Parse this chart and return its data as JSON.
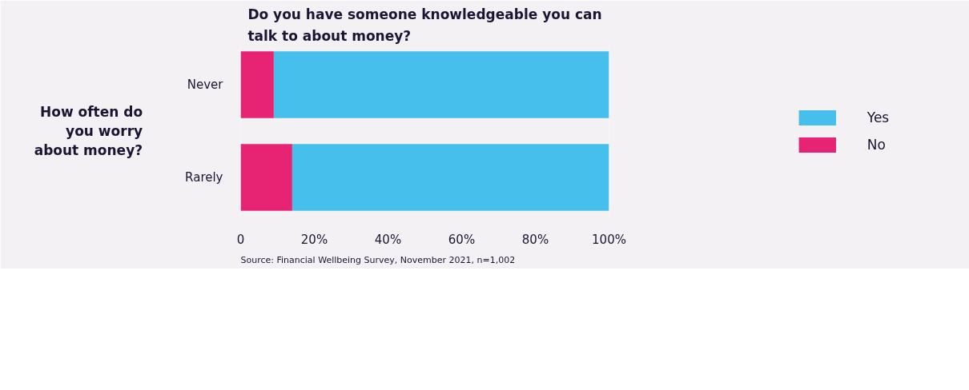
{
  "chart_data": {
    "type": "bar",
    "orientation": "horizontal",
    "stacked": true,
    "title": "Do you have someone knowledgeable you can talk to about money?",
    "ylabel": "How often do you worry about money?",
    "categories": [
      "Never",
      "Rarely"
    ],
    "series": [
      {
        "name": "No",
        "color": "#e72473",
        "values": [
          9,
          14
        ]
      },
      {
        "name": "Yes",
        "color": "#47bfed",
        "values": [
          91,
          86
        ]
      }
    ],
    "xlim": [
      0,
      100
    ],
    "xticks": [
      0,
      {
        "value": 20,
        "label": "20%"
      },
      {
        "value": 40,
        "label": "40%"
      },
      {
        "value": 60,
        "label": "60%"
      },
      {
        "value": 80,
        "label": "80%"
      },
      {
        "value": 100,
        "label": "100%"
      }
    ],
    "grid": false,
    "legend": "right",
    "annotations": [
      "Source: Financial Wellbeing Survey, November 2021, n=1,002"
    ]
  }
}
